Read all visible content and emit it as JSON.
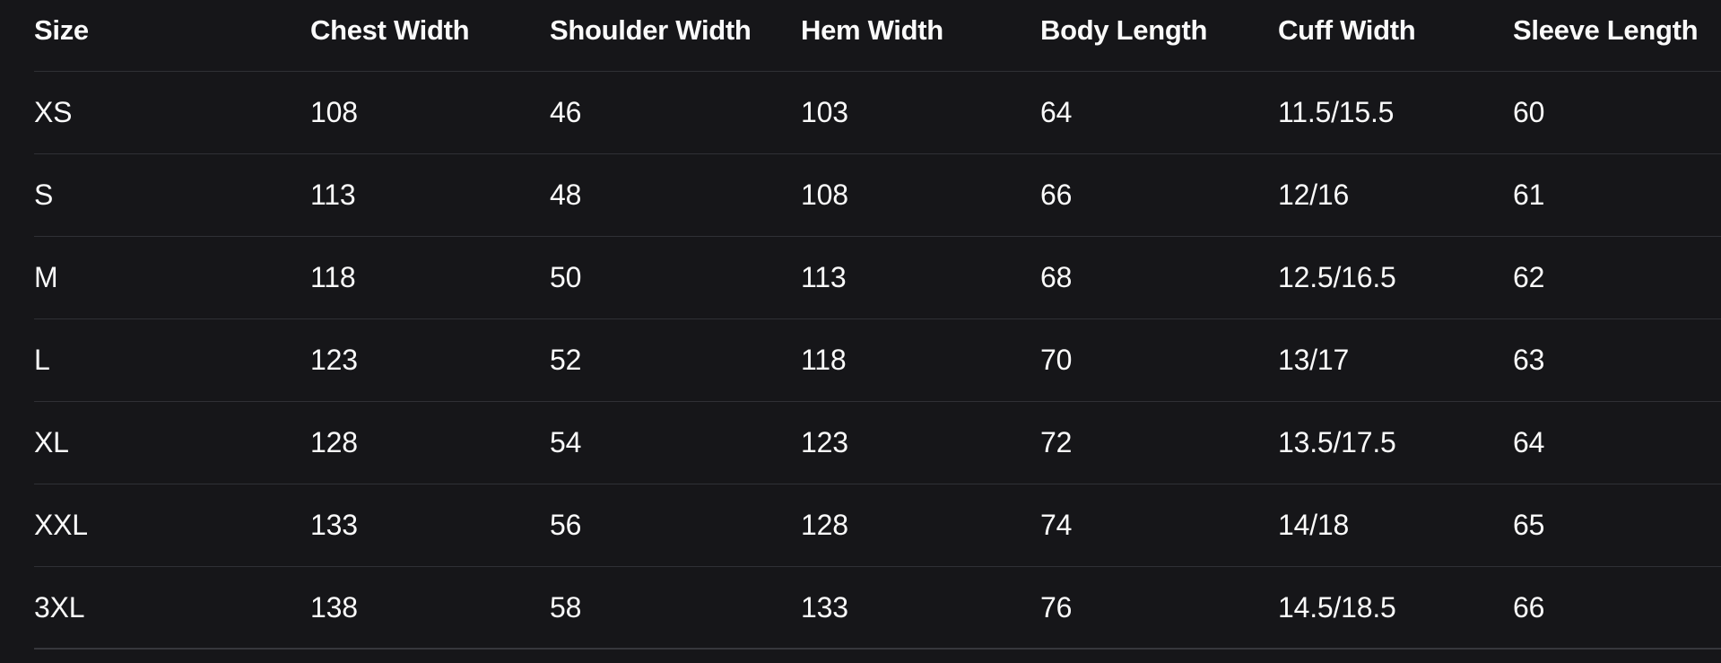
{
  "size_chart": {
    "columns": [
      "Size",
      "Chest Width",
      "Shoulder Width",
      "Hem Width",
      "Body Length",
      "Cuff Width",
      "Sleeve Length"
    ],
    "rows": [
      {
        "cells": [
          "XS",
          "108",
          "46",
          "103",
          "64",
          "11.5/15.5",
          "60"
        ]
      },
      {
        "cells": [
          "S",
          "113",
          "48",
          "108",
          "66",
          "12/16",
          "61"
        ]
      },
      {
        "cells": [
          "M",
          "118",
          "50",
          "113",
          "68",
          "12.5/16.5",
          "62"
        ]
      },
      {
        "cells": [
          "L",
          "123",
          "52",
          "118",
          "70",
          "13/17",
          "63"
        ]
      },
      {
        "cells": [
          "XL",
          "128",
          "54",
          "123",
          "72",
          "13.5/17.5",
          "64"
        ]
      },
      {
        "cells": [
          "XXL",
          "133",
          "56",
          "128",
          "74",
          "14/18",
          "65"
        ]
      },
      {
        "cells": [
          "3XL",
          "138",
          "58",
          "133",
          "76",
          "14.5/18.5",
          "66"
        ]
      }
    ]
  },
  "colors": {
    "background": "#161619",
    "text": "#fafafa",
    "divider": "#2f3035",
    "bottom_divider": "#36373c"
  }
}
